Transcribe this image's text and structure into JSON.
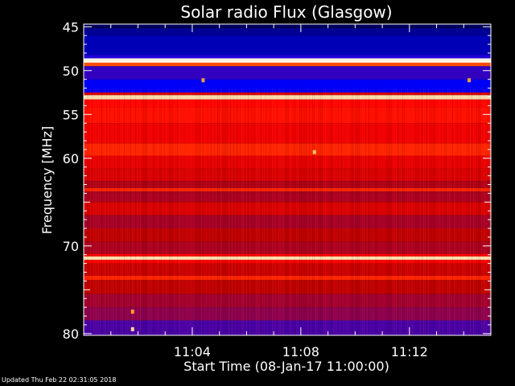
{
  "footer": {
    "updated": "Updated Thu Feb 22 02:31:05 2018"
  },
  "chart_data": {
    "type": "heatmap",
    "title": "Solar radio Flux (Glasgow)",
    "xlabel": "Start Time (08-Jan-17 11:00:00)",
    "ylabel": "Frequency [MHz]",
    "x_unit": "minutes after 11:00:00",
    "xlim": [
      0,
      15
    ],
    "ylim": [
      80.2,
      44.7
    ],
    "x_ticks": [
      {
        "value": 4,
        "label": "11:04"
      },
      {
        "value": 8,
        "label": "11:08"
      },
      {
        "value": 12,
        "label": "11:12"
      }
    ],
    "y_ticks": [
      {
        "value": 45,
        "label": "45"
      },
      {
        "value": 50,
        "label": "50"
      },
      {
        "value": 55,
        "label": "55"
      },
      {
        "value": 60,
        "label": "60"
      },
      {
        "value": 70,
        "label": "70"
      },
      {
        "value": 80,
        "label": "80"
      }
    ],
    "colormap": [
      "#000030",
      "#000099",
      "#0000ff",
      "#800060",
      "#c00000",
      "#ff0000",
      "#ff8000",
      "#ffd080",
      "#ffffff"
    ],
    "frequency_bands": [
      {
        "from": 44.7,
        "to": 45.2,
        "level": 0.05
      },
      {
        "from": 45.2,
        "to": 46.0,
        "level": 0.12
      },
      {
        "from": 46.0,
        "to": 48.2,
        "level": 0.16
      },
      {
        "from": 48.2,
        "to": 48.6,
        "level": 0.28
      },
      {
        "from": 48.6,
        "to": 49.1,
        "level": 0.97
      },
      {
        "from": 49.1,
        "to": 49.5,
        "level": 0.7
      },
      {
        "from": 49.5,
        "to": 51.0,
        "level": 0.3
      },
      {
        "from": 51.0,
        "to": 52.5,
        "level": 0.24
      },
      {
        "from": 52.5,
        "to": 52.8,
        "level": 0.55
      },
      {
        "from": 52.8,
        "to": 53.3,
        "level": 0.92
      },
      {
        "from": 53.3,
        "to": 54.2,
        "level": 0.63
      },
      {
        "from": 54.2,
        "to": 56.0,
        "level": 0.64
      },
      {
        "from": 56.0,
        "to": 58.3,
        "level": 0.6
      },
      {
        "from": 58.3,
        "to": 59.7,
        "level": 0.66
      },
      {
        "from": 59.7,
        "to": 61.2,
        "level": 0.58
      },
      {
        "from": 61.2,
        "to": 62.6,
        "level": 0.55
      },
      {
        "from": 62.6,
        "to": 63.4,
        "level": 0.47
      },
      {
        "from": 63.4,
        "to": 63.8,
        "level": 0.66
      },
      {
        "from": 63.8,
        "to": 65.0,
        "level": 0.46
      },
      {
        "from": 65.0,
        "to": 66.5,
        "level": 0.55
      },
      {
        "from": 66.5,
        "to": 68.0,
        "level": 0.45
      },
      {
        "from": 68.0,
        "to": 69.5,
        "level": 0.5
      },
      {
        "from": 69.5,
        "to": 70.9,
        "level": 0.46
      },
      {
        "from": 70.9,
        "to": 71.2,
        "level": 0.62
      },
      {
        "from": 71.2,
        "to": 71.6,
        "level": 0.92
      },
      {
        "from": 71.6,
        "to": 72.0,
        "level": 0.62
      },
      {
        "from": 72.0,
        "to": 73.4,
        "level": 0.52
      },
      {
        "from": 73.4,
        "to": 73.9,
        "level": 0.66
      },
      {
        "from": 73.9,
        "to": 75.5,
        "level": 0.5
      },
      {
        "from": 75.5,
        "to": 77.0,
        "level": 0.44
      },
      {
        "from": 77.0,
        "to": 78.5,
        "level": 0.4
      },
      {
        "from": 78.5,
        "to": 80.2,
        "level": 0.32
      }
    ],
    "spikes": [
      {
        "time": 4.4,
        "freq": 51.1,
        "level": 0.8
      },
      {
        "time": 14.2,
        "freq": 51.1,
        "level": 0.8
      },
      {
        "time": 8.5,
        "freq": 59.3,
        "level": 0.85
      },
      {
        "time": 1.8,
        "freq": 77.5,
        "level": 0.8
      },
      {
        "time": 1.8,
        "freq": 79.5,
        "level": 0.9
      }
    ]
  }
}
